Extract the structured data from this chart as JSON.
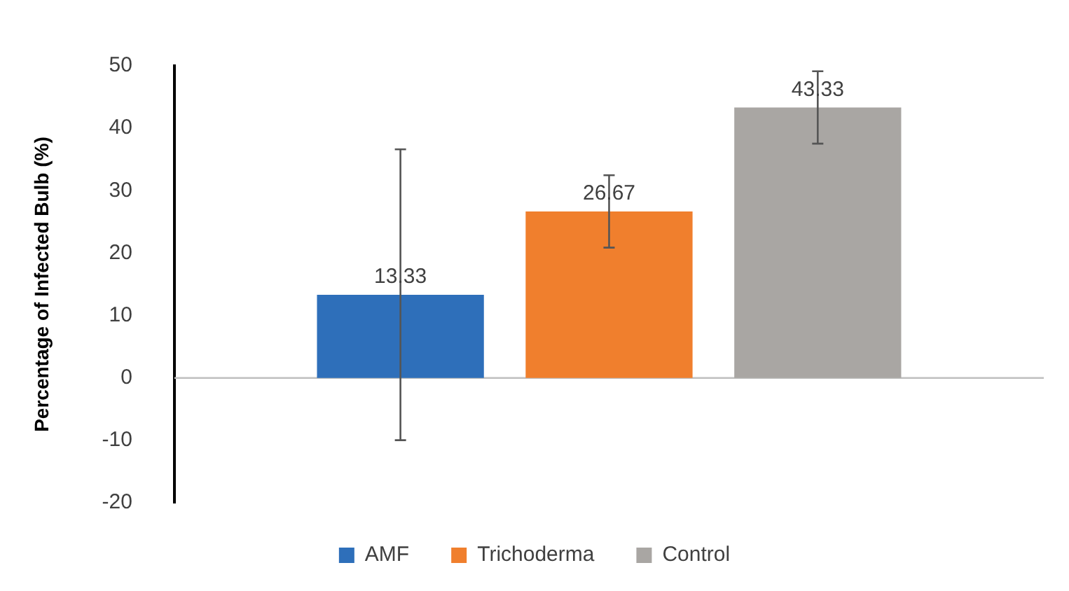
{
  "chart_data": {
    "type": "bar",
    "ylabel": "Percentage of Infected Bulb (%)",
    "categories": [
      null
    ],
    "series": [
      {
        "name": "AMF",
        "color": "#2e6fba",
        "values": [
          13.33
        ],
        "errors": [
          23.3
        ]
      },
      {
        "name": "Trichoderma",
        "color": "#f07f2d",
        "values": [
          26.67
        ],
        "errors": [
          5.8
        ]
      },
      {
        "name": "Control",
        "color": "#a9a6a3",
        "values": [
          43.33
        ],
        "errors": [
          5.8
        ]
      }
    ],
    "ylim": [
      -20,
      50
    ],
    "yticks": [
      -20,
      -10,
      0,
      10,
      20,
      30,
      40,
      50
    ],
    "ref_lines": [
      {
        "axis": "y",
        "value": 0,
        "color": "#bfbfbf"
      }
    ],
    "grid": false,
    "legend": "bottom",
    "data_labels": true
  }
}
